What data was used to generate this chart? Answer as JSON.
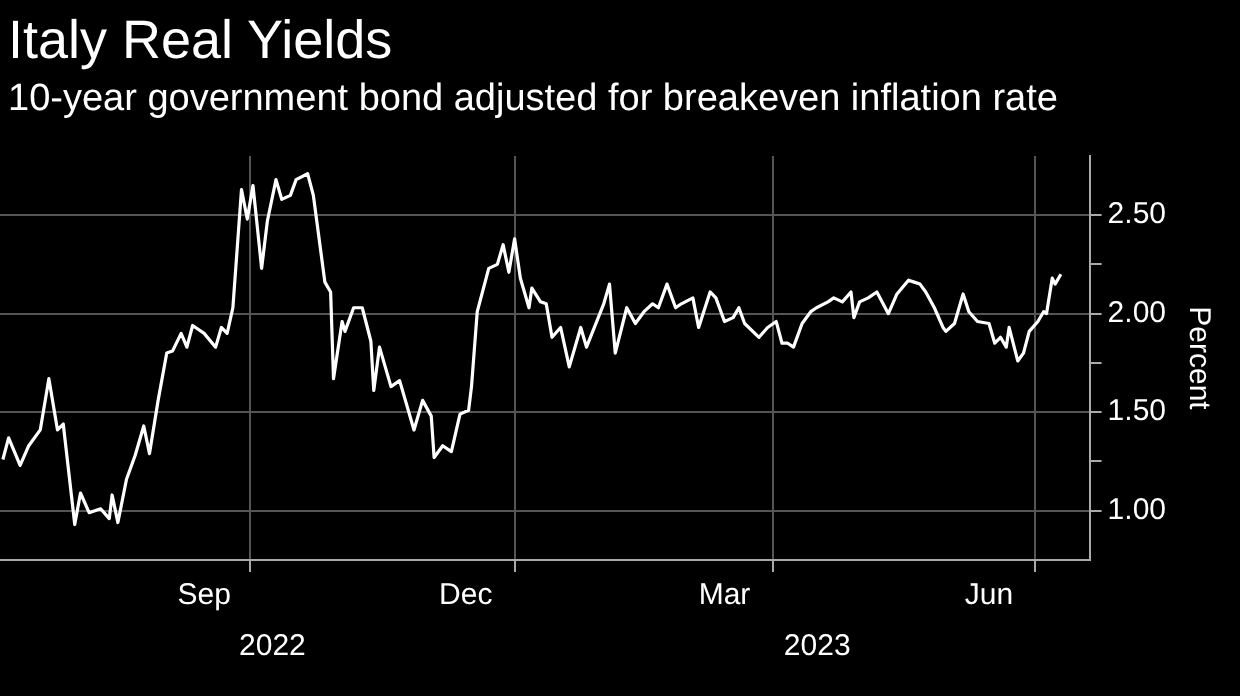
{
  "chart_data": {
    "type": "line",
    "title": "Italy Real Yields",
    "subtitle": "10-year government bond adjusted for breakeven inflation rate",
    "ylabel": "Percent",
    "x": [
      "2022-07-07",
      "2022-07-09",
      "2022-07-13",
      "2022-07-16",
      "2022-07-20",
      "2022-07-23",
      "2022-07-26",
      "2022-07-28",
      "2022-08-01",
      "2022-08-03",
      "2022-08-06",
      "2022-08-10",
      "2022-08-13",
      "2022-08-14",
      "2022-08-16",
      "2022-08-19",
      "2022-08-22",
      "2022-08-25",
      "2022-08-27",
      "2022-08-30",
      "2022-09-02",
      "2022-09-04",
      "2022-09-07",
      "2022-09-09",
      "2022-09-11",
      "2022-09-15",
      "2022-09-19",
      "2022-09-21",
      "2022-09-23",
      "2022-09-25",
      "2022-09-28",
      "2022-09-30",
      "2022-10-02",
      "2022-10-05",
      "2022-10-07",
      "2022-10-10",
      "2022-10-12",
      "2022-10-15",
      "2022-10-17",
      "2022-10-21",
      "2022-10-23",
      "2022-10-27",
      "2022-10-29",
      "2022-10-30",
      "2022-11-02",
      "2022-11-03",
      "2022-11-06",
      "2022-11-09",
      "2022-11-12",
      "2022-11-13",
      "2022-11-15",
      "2022-11-19",
      "2022-11-22",
      "2022-11-27",
      "2022-11-30",
      "2022-12-03",
      "2022-12-04",
      "2022-12-07",
      "2022-12-10",
      "2022-12-13",
      "2022-12-16",
      "2022-12-17",
      "2022-12-19",
      "2022-12-23",
      "2022-12-26",
      "2022-12-28",
      "2022-12-30",
      "2023-01-01",
      "2023-01-03",
      "2023-01-06",
      "2023-01-07",
      "2023-01-10",
      "2023-01-12",
      "2023-01-14",
      "2023-01-17",
      "2023-01-20",
      "2023-01-24",
      "2023-01-26",
      "2023-02-01",
      "2023-02-03",
      "2023-02-05",
      "2023-02-09",
      "2023-02-12",
      "2023-02-15",
      "2023-02-18",
      "2023-02-20",
      "2023-02-23",
      "2023-02-26",
      "2023-02-28",
      "2023-03-04",
      "2023-03-06",
      "2023-03-10",
      "2023-03-12",
      "2023-03-15",
      "2023-03-18",
      "2023-03-20",
      "2023-03-22",
      "2023-03-27",
      "2023-03-30",
      "2023-04-02",
      "2023-04-04",
      "2023-04-06",
      "2023-04-08",
      "2023-04-11",
      "2023-04-14",
      "2023-04-16",
      "2023-04-20",
      "2023-04-22",
      "2023-04-25",
      "2023-04-28",
      "2023-04-29",
      "2023-05-01",
      "2023-05-04",
      "2023-05-07",
      "2023-05-11",
      "2023-05-14",
      "2023-05-18",
      "2023-05-20",
      "2023-05-22",
      "2023-05-24",
      "2023-05-27",
      "2023-05-30",
      "2023-05-31",
      "2023-06-03",
      "2023-06-06",
      "2023-06-08",
      "2023-06-11",
      "2023-06-15",
      "2023-06-17",
      "2023-06-19",
      "2023-06-21",
      "2023-06-22",
      "2023-06-25",
      "2023-06-27",
      "2023-06-29",
      "2023-07-02",
      "2023-07-04",
      "2023-07-05",
      "2023-07-07",
      "2023-07-08",
      "2023-07-10"
    ],
    "series": [
      {
        "color": "#ffffff",
        "values": [
          1.26,
          1.37,
          1.23,
          1.33,
          1.41,
          1.67,
          1.41,
          1.44,
          0.93,
          1.09,
          0.99,
          1.01,
          0.96,
          1.08,
          0.94,
          1.16,
          1.28,
          1.43,
          1.29,
          1.56,
          1.8,
          1.81,
          1.9,
          1.83,
          1.94,
          1.9,
          1.83,
          1.93,
          1.9,
          2.03,
          2.63,
          2.48,
          2.65,
          2.23,
          2.47,
          2.68,
          2.58,
          2.6,
          2.68,
          2.71,
          2.6,
          2.16,
          2.11,
          1.67,
          1.96,
          1.91,
          2.03,
          2.03,
          1.86,
          1.61,
          1.83,
          1.63,
          1.66,
          1.41,
          1.56,
          1.48,
          1.27,
          1.33,
          1.3,
          1.49,
          1.51,
          1.63,
          2.01,
          2.23,
          2.25,
          2.35,
          2.21,
          2.38,
          2.18,
          2.03,
          2.13,
          2.06,
          2.05,
          1.88,
          1.93,
          1.73,
          1.93,
          1.83,
          2.05,
          2.15,
          1.8,
          2.03,
          1.95,
          2.01,
          2.05,
          2.03,
          2.15,
          2.03,
          2.05,
          2.08,
          1.93,
          2.11,
          2.08,
          1.96,
          1.98,
          2.03,
          1.95,
          1.88,
          1.93,
          1.96,
          1.85,
          1.85,
          1.83,
          1.95,
          2.01,
          2.03,
          2.06,
          2.08,
          2.06,
          2.11,
          1.98,
          2.06,
          2.08,
          2.11,
          2.0,
          2.1,
          2.17,
          2.16,
          2.15,
          2.11,
          2.03,
          1.93,
          1.91,
          1.95,
          2.1,
          2.01,
          1.96,
          1.95,
          1.85,
          1.88,
          1.83,
          1.93,
          1.76,
          1.8,
          1.91,
          1.96,
          2.01,
          2.0,
          2.18,
          2.15,
          2.2
        ]
      }
    ],
    "xlim": [
      "2022-07-06",
      "2023-07-20"
    ],
    "xticks": [
      {
        "value": "2022-09-15",
        "label": "Sep"
      },
      {
        "value": "2022-10-01",
        "label": null
      },
      {
        "value": "2022-12-15",
        "label": "Dec"
      },
      {
        "value": "2023-01-01",
        "label": null
      },
      {
        "value": "2023-03-15",
        "label": "Mar"
      },
      {
        "value": "2023-04-01",
        "label": null
      },
      {
        "value": "2023-06-15",
        "label": "Jun"
      },
      {
        "value": "2023-07-01",
        "label": null
      }
    ],
    "ylim": [
      0.75,
      2.8
    ],
    "yticks": [
      {
        "value": 1,
        "label": "1.00"
      },
      {
        "value": 1.25,
        "label": null
      },
      {
        "value": 1.5,
        "label": "1.50"
      },
      {
        "value": 1.75,
        "label": null
      },
      {
        "value": 2,
        "label": "2.00"
      },
      {
        "value": 2.25,
        "label": null
      },
      {
        "value": 2.5,
        "label": "2.50"
      }
    ],
    "annotations": [
      "2022",
      "2023"
    ],
    "grid": true,
    "marker": "none",
    "line_style": "solid"
  }
}
